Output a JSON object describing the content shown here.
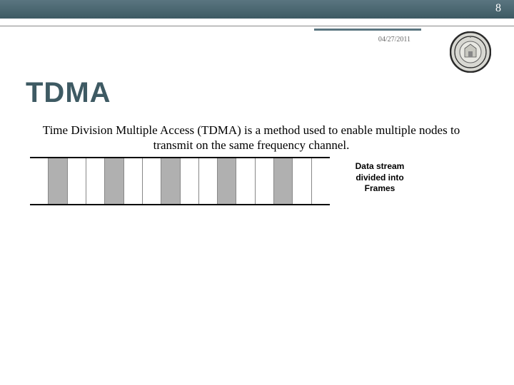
{
  "header": {
    "page_number": "8",
    "date": "04/27/2011",
    "bar_color": "#4a6770"
  },
  "title": "TDMA",
  "title_color": "#3e5a63",
  "body_text": "Time Division Multiple Access (TDMA) is a method used to enable multiple nodes to transmit on the same frequency channel.",
  "diagram": {
    "type": "infographic",
    "label_line1": "Data stream",
    "label_line2": "divided into",
    "label_line3": "Frames",
    "slots": [
      {
        "filled": false
      },
      {
        "filled": true
      },
      {
        "filled": false
      },
      {
        "filled": false
      },
      {
        "filled": true
      },
      {
        "filled": false
      },
      {
        "filled": false
      },
      {
        "filled": true
      },
      {
        "filled": false
      },
      {
        "filled": false
      },
      {
        "filled": true
      },
      {
        "filled": false
      },
      {
        "filled": false
      },
      {
        "filled": true
      },
      {
        "filled": false
      },
      {
        "filled": false
      }
    ],
    "filled_color": "#b0b0b0",
    "border_color": "#000000"
  },
  "seal": {
    "outer_ring": "#2a2a2a",
    "inner_bg": "#d8d8d2",
    "accent": "#888"
  }
}
